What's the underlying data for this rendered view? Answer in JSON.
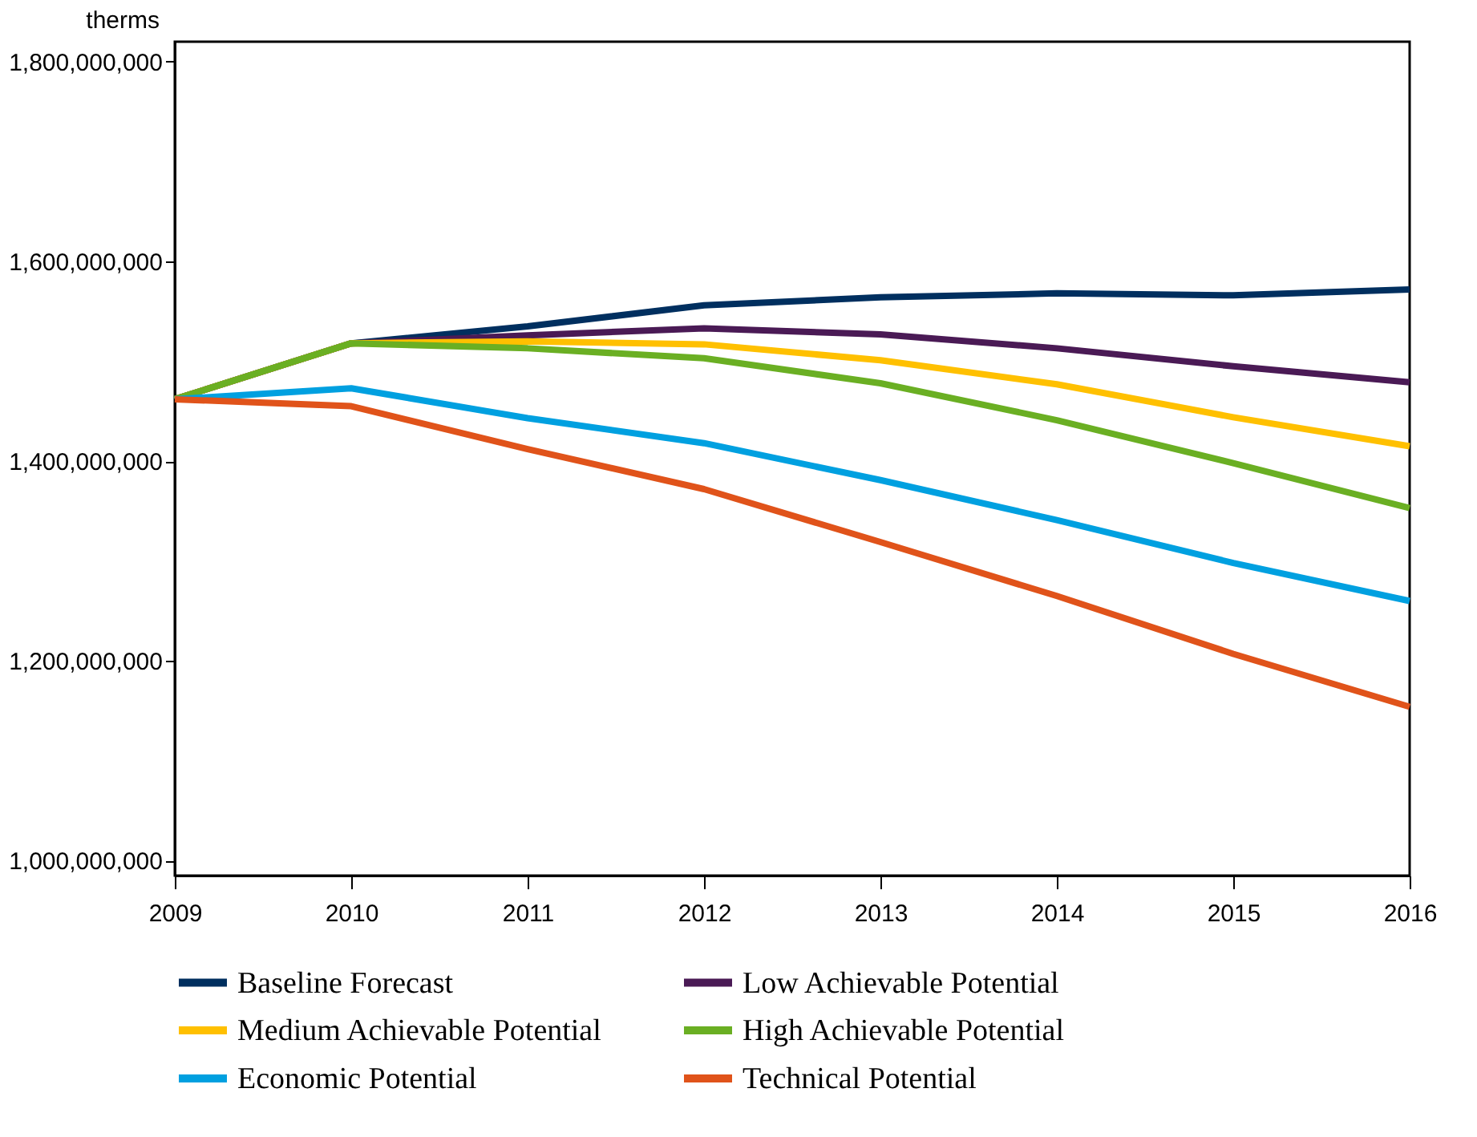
{
  "chart_data": {
    "type": "line",
    "ylabel": "therms",
    "x": [
      2009,
      2010,
      2011,
      2012,
      2013,
      2014,
      2015,
      2016
    ],
    "xlim": [
      2009,
      2016
    ],
    "xticks": [
      2009,
      2010,
      2011,
      2012,
      2013,
      2014,
      2015,
      2016
    ],
    "ylim": [
      985000000,
      1820000000
    ],
    "yticks": [
      {
        "value": 1000000000,
        "label": "1,000,000,000"
      },
      {
        "value": 1200000000,
        "label": "1,200,000,000"
      },
      {
        "value": 1400000000,
        "label": "1,400,000,000"
      },
      {
        "value": 1600000000,
        "label": "1,600,000,000"
      },
      {
        "value": 1800000000,
        "label": "1,800,000,000"
      }
    ],
    "grid": false,
    "legend": "bottom",
    "marker": "none",
    "line_style": "solid",
    "series": [
      {
        "name": "Baseline Forecast",
        "color": "#002f5f",
        "values": [
          1462000000,
          1518000000,
          1535000000,
          1556000000,
          1564000000,
          1568000000,
          1566000000,
          1572000000
        ]
      },
      {
        "name": "Low Achievable Potential",
        "color": "#4a1a55",
        "values": [
          1462000000,
          1518000000,
          1526000000,
          1533000000,
          1527000000,
          1513000000,
          1495000000,
          1479000000
        ]
      },
      {
        "name": "Medium Achievable Potential",
        "color": "#ffc000",
        "values": [
          1462000000,
          1518000000,
          1520000000,
          1517000000,
          1501000000,
          1477000000,
          1444000000,
          1415000000
        ]
      },
      {
        "name": "High Achievable Potential",
        "color": "#6aaf23",
        "values": [
          1462000000,
          1518000000,
          1513000000,
          1503000000,
          1478000000,
          1441000000,
          1398000000,
          1353000000
        ]
      },
      {
        "name": "Economic Potential",
        "color": "#00a0e0",
        "values": [
          1462000000,
          1473000000,
          1443000000,
          1418000000,
          1381000000,
          1341000000,
          1298000000,
          1260000000
        ]
      },
      {
        "name": "Technical Potential",
        "color": "#e0531a",
        "values": [
          1462000000,
          1455000000,
          1412000000,
          1372000000,
          1319000000,
          1265000000,
          1207000000,
          1154000000
        ]
      }
    ]
  }
}
